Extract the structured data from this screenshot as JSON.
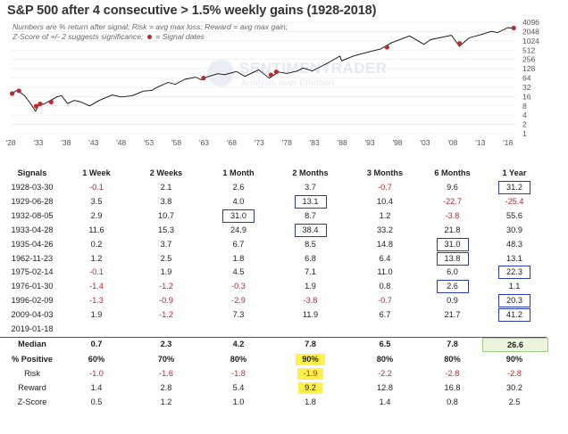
{
  "title": "S&P 500 after 4 consecutive > 1.5% weekly gains (1928-2018)",
  "notes": {
    "line1": "Numbers are % return after signal; Risk = avg max loss; Reward = avg max gain;",
    "line2a": "Z-Score of +/- 2 suggests significance;",
    "line2b": "= Signal dates"
  },
  "watermark": {
    "name": "SENTIMENTRADER",
    "tagline": "Analysis over Emotion"
  },
  "colors": {
    "line": "#0b0b0b",
    "signal": "#c0282d",
    "negative": "#c0282d",
    "box": "#2a3bb8",
    "highlight_yellow": "#fff14a",
    "highlight_green": "#ebf5dd",
    "grid": "#e8e8e8"
  },
  "chart_data": {
    "type": "line",
    "title": "S&P 500 after 4 consecutive > 1.5% weekly gains (1928-2018)",
    "y_scale": "log2",
    "ylim": [
      1,
      4096
    ],
    "xlim": [
      1928,
      2019.5
    ],
    "x_ticks": [
      "'28",
      "'33",
      "'38",
      "'43",
      "'48",
      "'53",
      "'58",
      "'63",
      "'68",
      "'73",
      "'78",
      "'83",
      "'88",
      "'93",
      "'98",
      "'03",
      "'08",
      "'13",
      "'18"
    ],
    "x_tick_years": [
      1928,
      1933,
      1938,
      1943,
      1948,
      1953,
      1958,
      1963,
      1968,
      1973,
      1978,
      1983,
      1988,
      1993,
      1998,
      2003,
      2008,
      2013,
      2018
    ],
    "y_ticks": [
      "4096",
      "2048",
      "1024",
      "512",
      "256",
      "128",
      "64",
      "32",
      "16",
      "8",
      "4",
      "2",
      "1"
    ],
    "y_tick_values": [
      4096,
      2048,
      1024,
      512,
      256,
      128,
      64,
      32,
      16,
      8,
      4,
      2,
      1
    ],
    "series": [
      {
        "x": [
          1928.0,
          1929.0,
          1929.7,
          1930.5,
          1931.5,
          1932.5,
          1933.2,
          1934.0,
          1935.0,
          1936.5,
          1937.2,
          1938.3,
          1939.5,
          1940.5,
          1942.3,
          1944.0,
          1946.4,
          1948.0,
          1950.0,
          1952.0,
          1953.5,
          1954.5,
          1956.5,
          1957.8,
          1959.5,
          1961.5,
          1962.5,
          1963.5,
          1965.5,
          1966.7,
          1968.9,
          1970.4,
          1972.9,
          1974.8,
          1976.5,
          1978.0,
          1980.0,
          1980.9,
          1982.6,
          1985.0,
          1987.6,
          1987.9,
          1990.0,
          1993.0,
          1995.0,
          1997.0,
          2000.2,
          2002.8,
          2004.0,
          2007.8,
          2009.2,
          2011.0,
          2013.0,
          2015.0,
          2016.1,
          2018.0,
          2018.8
        ],
        "y": [
          17.7,
          25.0,
          22.0,
          17.0,
          10.0,
          5.3,
          9.5,
          9.0,
          11.5,
          16.0,
          17.0,
          9.5,
          12.0,
          11.0,
          8.0,
          12.0,
          18.0,
          15.5,
          17.0,
          24.0,
          25.0,
          32.0,
          46.0,
          40.0,
          58.0,
          68.0,
          56.0,
          69.0,
          88.0,
          82.0,
          104.0,
          72.0,
          118.0,
          63.0,
          100.0,
          90.0,
          110.0,
          135.0,
          108.0,
          180.0,
          330.0,
          230.0,
          330.0,
          460.0,
          560.0,
          900.0,
          1480.0,
          790.0,
          1120.0,
          1550.0,
          680.0,
          1280.0,
          1600.0,
          2080.0,
          1890.0,
          2750.0,
          2630.0
        ]
      }
    ],
    "signals": [
      {
        "x": 1928.25,
        "y": 20.0
      },
      {
        "x": 1929.49,
        "y": 24.5
      },
      {
        "x": 1932.6,
        "y": 7.8
      },
      {
        "x": 1933.32,
        "y": 9.2
      },
      {
        "x": 1935.32,
        "y": 10.6
      },
      {
        "x": 1962.9,
        "y": 63.5
      },
      {
        "x": 1975.12,
        "y": 80.5
      },
      {
        "x": 1976.08,
        "y": 101.0
      },
      {
        "x": 1996.11,
        "y": 635.0
      },
      {
        "x": 2009.25,
        "y": 842.0
      },
      {
        "x": 2019.05,
        "y": 2670.0
      }
    ]
  },
  "table": {
    "headers": [
      "Signals",
      "1 Week",
      "2 Weeks",
      "1 Month",
      "2 Months",
      "3 Months",
      "6 Months",
      "1 Year"
    ],
    "rows": [
      {
        "date": "1928-03-30",
        "values": [
          "-0.1",
          "2.1",
          "2.6",
          "3.7",
          "-0.7",
          "9.6",
          "31.2"
        ],
        "boxed": [
          6
        ]
      },
      {
        "date": "1929-06-28",
        "values": [
          "3.5",
          "3.8",
          "4.0",
          "13.1",
          "10.4",
          "-22.7",
          "-25.4"
        ],
        "boxed": [
          3
        ]
      },
      {
        "date": "1932-08-05",
        "values": [
          "2.9",
          "10.7",
          "31.0",
          "8.7",
          "1.2",
          "-3.8",
          "55.6"
        ],
        "boxed": [
          2
        ]
      },
      {
        "date": "1933-04-28",
        "values": [
          "11.6",
          "15.3",
          "24.9",
          "38.4",
          "33.2",
          "21.8",
          "30.9"
        ],
        "boxed": [
          3
        ]
      },
      {
        "date": "1935-04-26",
        "values": [
          "0.2",
          "3.7",
          "6.7",
          "8.5",
          "14.8",
          "31.0",
          "48.3"
        ],
        "boxed": [
          5
        ]
      },
      {
        "date": "1962-11-23",
        "values": [
          "1.2",
          "2.5",
          "1.8",
          "6.8",
          "6.4",
          "13.8",
          "13.1"
        ],
        "boxed": [
          5
        ]
      },
      {
        "date": "1975-02-14",
        "values": [
          "-0.1",
          "1.9",
          "4.5",
          "7.1",
          "11.0",
          "6.0",
          "22.3"
        ],
        "boxed": [
          6
        ]
      },
      {
        "date": "1976-01-30",
        "values": [
          "-1.4",
          "-1.2",
          "-0.3",
          "1.9",
          "0.8",
          "2.6",
          "1.1"
        ],
        "boxed": [
          5
        ]
      },
      {
        "date": "1996-02-09",
        "values": [
          "-1.3",
          "-0.9",
          "-2.9",
          "-3.8",
          "-0.7",
          "0.9",
          "20.3"
        ],
        "boxed": [
          6
        ]
      },
      {
        "date": "2009-04-03",
        "values": [
          "1.9",
          "-1.2",
          "7.3",
          "11.9",
          "6.7",
          "21.7",
          "41.2"
        ],
        "boxed": [
          6
        ]
      },
      {
        "date": "2019-01-18",
        "values": [
          "",
          "",
          "",
          "",
          "",
          "",
          ""
        ],
        "boxed": []
      }
    ],
    "summary": [
      {
        "label": "Median",
        "values": [
          "0.7",
          "2.3",
          "4.2",
          "7.8",
          "6.5",
          "7.8",
          "26.6"
        ],
        "bold": true,
        "yellow": [],
        "green": [
          6
        ]
      },
      {
        "label": "% Positive",
        "values": [
          "60%",
          "70%",
          "80%",
          "90%",
          "80%",
          "80%",
          "90%"
        ],
        "bold": true,
        "yellow": [
          3
        ],
        "green": []
      },
      {
        "label": "Risk",
        "values": [
          "-1.0",
          "-1.6",
          "-1.8",
          "-1.9",
          "-2.2",
          "-2.8",
          "-2.8"
        ],
        "bold": false,
        "yellow": [
          3
        ],
        "green": []
      },
      {
        "label": "Reward",
        "values": [
          "1.4",
          "2.8",
          "5.4",
          "9.2",
          "12.8",
          "16.8",
          "30.2"
        ],
        "bold": false,
        "yellow": [
          3
        ],
        "green": []
      },
      {
        "label": "Z-Score",
        "values": [
          "0.5",
          "1.2",
          "1.0",
          "1.8",
          "1.4",
          "0.8",
          "2.5"
        ],
        "bold": false,
        "yellow": [],
        "green": []
      }
    ]
  }
}
